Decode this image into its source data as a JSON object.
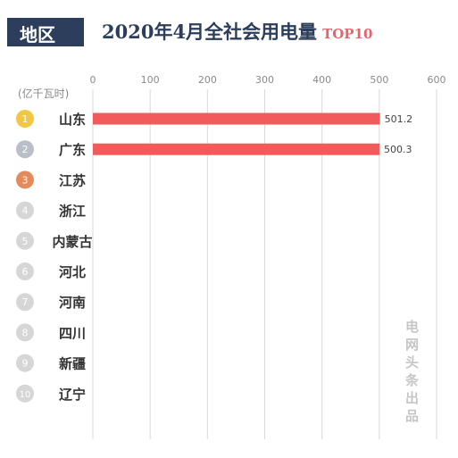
{
  "header": {
    "tag": "地区",
    "title": "2020年4月全社会用电量",
    "top_label": "TOP10",
    "watermark": "电网头条出品"
  },
  "colors": {
    "bar": "#f25a5c",
    "gold_medal": "#f2c744",
    "silver_medal": "#b9bfc7",
    "bronze_medal": "#e58a5a",
    "other_medal": "#d6d6d6",
    "title": "#2d3e5c"
  },
  "chart_data": {
    "type": "bar",
    "orientation": "horizontal",
    "unit_label": "(亿千瓦时)",
    "categories": [
      "山东",
      "广东",
      "江苏",
      "浙江",
      "内蒙古",
      "河北",
      "河南",
      "四川",
      "新疆",
      "辽宁"
    ],
    "ranks": [
      "1",
      "2",
      "3",
      "4",
      "5",
      "6",
      "7",
      "8",
      "9",
      "10"
    ],
    "values": [
      501.2,
      500.3,
      null,
      null,
      null,
      null,
      null,
      null,
      null,
      null
    ],
    "value_labels": [
      "501.2",
      "500.3",
      "",
      "",
      "",
      "",
      "",
      "",
      "",
      ""
    ],
    "xlim": [
      0,
      600
    ],
    "xticks": [
      "0",
      "100",
      "200",
      "300",
      "400",
      "500",
      "600"
    ],
    "tick_values": [
      0,
      100,
      200,
      300,
      400,
      500,
      600
    ],
    "grid": true
  }
}
